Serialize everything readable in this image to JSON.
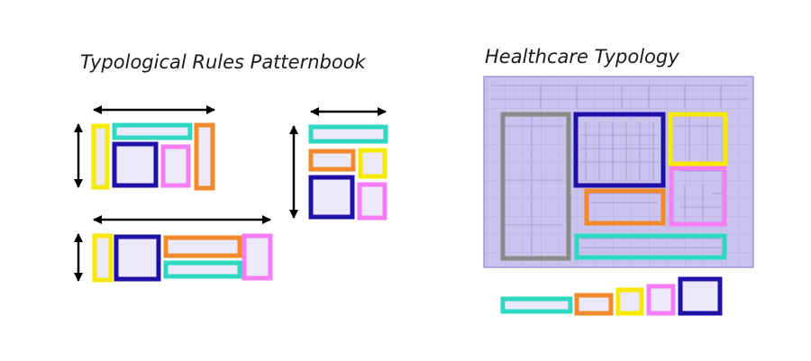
{
  "titles": {
    "patternbook": "Typological Rules Patternbook",
    "healthcare": "Healthcare Typology"
  },
  "colors": {
    "yellow": "#f7ea00",
    "teal": "#2fd8c2",
    "blue": "#1f10a8",
    "pink": "#f57ef5",
    "orange": "#f28a2b",
    "gray": "#8a8a8a",
    "fill": "#ece9fb",
    "plan_bg": "#c9c3ee",
    "arrow": "#000000"
  },
  "icons": {
    "arrow": "double-headed-arrow"
  }
}
